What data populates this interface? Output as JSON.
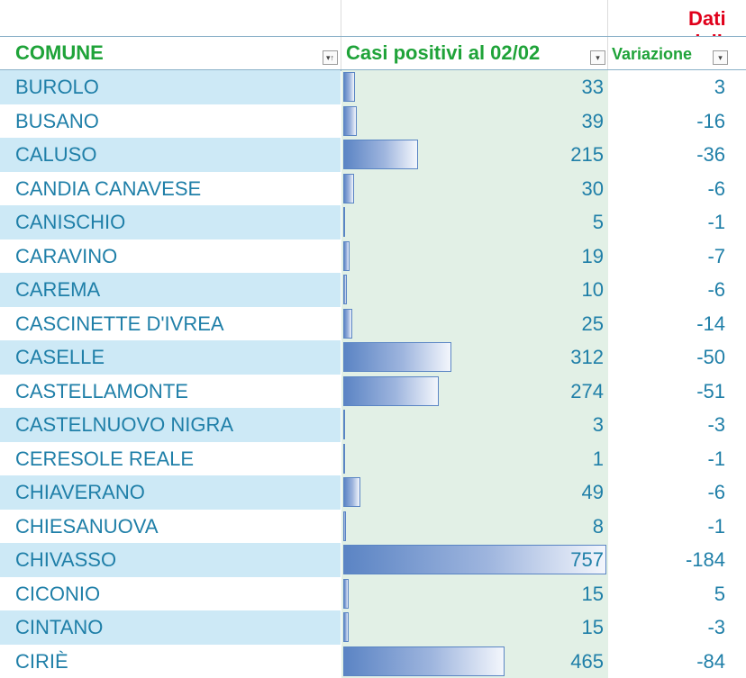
{
  "sheet": {
    "region_title": "Dati della Regione",
    "headers": {
      "comune": "COMUNE",
      "cases": "Casi positivi al 02/02",
      "variation": "Variazione"
    },
    "filter_icons": {
      "comune": "sort-filter-icon",
      "cases": "dropdown-filter-icon",
      "variation": "dropdown-filter-icon"
    },
    "colors": {
      "title": "#e0001b",
      "header": "#1fa339",
      "text": "#1f7fa8",
      "band_blue": "#cde9f6",
      "band_green": "#e2f0e6",
      "databar": "#5b84c4"
    },
    "databar_max": 757,
    "rows": [
      {
        "comune": "BUROLO",
        "cases": "33",
        "variation": "3"
      },
      {
        "comune": "BUSANO",
        "cases": "39",
        "variation": "-16"
      },
      {
        "comune": "CALUSO",
        "cases": "215",
        "variation": "-36"
      },
      {
        "comune": "CANDIA CANAVESE",
        "cases": "30",
        "variation": "-6"
      },
      {
        "comune": "CANISCHIO",
        "cases": "5",
        "variation": "-1"
      },
      {
        "comune": "CARAVINO",
        "cases": "19",
        "variation": "-7"
      },
      {
        "comune": "CAREMA",
        "cases": "10",
        "variation": "-6"
      },
      {
        "comune": "CASCINETTE D'IVREA",
        "cases": "25",
        "variation": "-14"
      },
      {
        "comune": "CASELLE",
        "cases": "312",
        "variation": "-50"
      },
      {
        "comune": "CASTELLAMONTE",
        "cases": "274",
        "variation": "-51"
      },
      {
        "comune": "CASTELNUOVO NIGRA",
        "cases": "3",
        "variation": "-3"
      },
      {
        "comune": "CERESOLE REALE",
        "cases": "1",
        "variation": "-1"
      },
      {
        "comune": "CHIAVERANO",
        "cases": "49",
        "variation": "-6"
      },
      {
        "comune": "CHIESANUOVA",
        "cases": "8",
        "variation": "-1"
      },
      {
        "comune": "CHIVASSO",
        "cases": "757",
        "variation": "-184"
      },
      {
        "comune": "CICONIO",
        "cases": "15",
        "variation": "5"
      },
      {
        "comune": "CINTANO",
        "cases": "15",
        "variation": "-3"
      },
      {
        "comune": "CIRIÈ",
        "cases": "465",
        "variation": "-84"
      }
    ]
  }
}
